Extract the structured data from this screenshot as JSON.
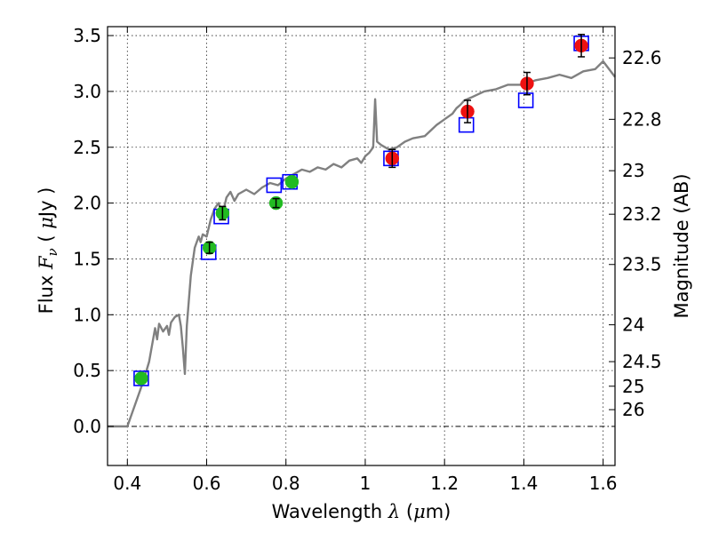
{
  "chart_data": {
    "type": "scatter",
    "xlabel_text": "Wavelength",
    "xlabel_symbol": "λ",
    "xlabel_unit_open": " (",
    "xlabel_unit_mu": "μ",
    "xlabel_unit_close": "m)",
    "ylabel_text": "Flux",
    "ylabel_symbol": "F",
    "ylabel_sub": "ν",
    "ylabel_unit_open": " ( ",
    "ylabel_unit_mu": "μ",
    "ylabel_unit_close": "Jy )",
    "y2label": "Magnitude (AB)",
    "xlim": [
      0.35,
      1.63
    ],
    "ylim": [
      -0.35,
      3.58
    ],
    "xticks": [
      0.4,
      0.6,
      0.8,
      1.0,
      1.2,
      1.4,
      1.6
    ],
    "xtick_labels": [
      "0.4",
      "0.6",
      "0.8",
      "1",
      "1.2",
      "1.4",
      "1.6"
    ],
    "yticks": [
      0.0,
      0.5,
      1.0,
      1.5,
      2.0,
      2.5,
      3.0,
      3.5
    ],
    "ytick_labels": [
      "0.0",
      "0.5",
      "1.0",
      "1.5",
      "2.0",
      "2.5",
      "3.0",
      "3.5"
    ],
    "mag_ticks": [
      {
        "label": "22.6",
        "flux": 3.3
      },
      {
        "label": "22.8",
        "flux": 2.75
      },
      {
        "label": "23",
        "flux": 2.29
      },
      {
        "label": "23.2",
        "flux": 1.9
      },
      {
        "label": "23.5",
        "flux": 1.45
      },
      {
        "label": "24",
        "flux": 0.91
      },
      {
        "label": "24.5",
        "flux": 0.58
      },
      {
        "label": "25",
        "flux": 0.36
      },
      {
        "label": "26",
        "flux": 0.15
      }
    ],
    "grid": true,
    "colors": {
      "template": "#808080",
      "model_box": "#0000ff",
      "green_point": "#22bb22",
      "red_point": "#ee1111",
      "errorbar": "#000000",
      "zero_line": "#000000"
    },
    "series": [
      {
        "style": "line",
        "points": [
          [
            0.35,
            0.0
          ],
          [
            0.4,
            0.0
          ],
          [
            0.42,
            0.2
          ],
          [
            0.44,
            0.4
          ],
          [
            0.455,
            0.58
          ],
          [
            0.47,
            0.88
          ],
          [
            0.475,
            0.78
          ],
          [
            0.48,
            0.92
          ],
          [
            0.49,
            0.85
          ],
          [
            0.5,
            0.9
          ],
          [
            0.505,
            0.82
          ],
          [
            0.51,
            0.93
          ],
          [
            0.52,
            0.98
          ],
          [
            0.53,
            1.0
          ],
          [
            0.535,
            0.9
          ],
          [
            0.54,
            0.7
          ],
          [
            0.545,
            0.47
          ],
          [
            0.55,
            0.9
          ],
          [
            0.56,
            1.35
          ],
          [
            0.57,
            1.6
          ],
          [
            0.58,
            1.7
          ],
          [
            0.585,
            1.65
          ],
          [
            0.59,
            1.72
          ],
          [
            0.6,
            1.7
          ],
          [
            0.61,
            1.85
          ],
          [
            0.62,
            1.95
          ],
          [
            0.63,
            2.0
          ],
          [
            0.64,
            1.9
          ],
          [
            0.65,
            2.05
          ],
          [
            0.66,
            2.1
          ],
          [
            0.67,
            2.02
          ],
          [
            0.68,
            2.08
          ],
          [
            0.7,
            2.12
          ],
          [
            0.72,
            2.08
          ],
          [
            0.74,
            2.14
          ],
          [
            0.76,
            2.18
          ],
          [
            0.78,
            2.16
          ],
          [
            0.8,
            2.22
          ],
          [
            0.82,
            2.26
          ],
          [
            0.84,
            2.3
          ],
          [
            0.86,
            2.28
          ],
          [
            0.88,
            2.32
          ],
          [
            0.9,
            2.3
          ],
          [
            0.92,
            2.35
          ],
          [
            0.94,
            2.32
          ],
          [
            0.96,
            2.38
          ],
          [
            0.98,
            2.4
          ],
          [
            0.99,
            2.36
          ],
          [
            1.0,
            2.42
          ],
          [
            1.01,
            2.45
          ],
          [
            1.02,
            2.5
          ],
          [
            1.025,
            2.93
          ],
          [
            1.03,
            2.55
          ],
          [
            1.04,
            2.52
          ],
          [
            1.06,
            2.48
          ],
          [
            1.08,
            2.5
          ],
          [
            1.1,
            2.55
          ],
          [
            1.12,
            2.58
          ],
          [
            1.15,
            2.6
          ],
          [
            1.18,
            2.7
          ],
          [
            1.2,
            2.75
          ],
          [
            1.22,
            2.8
          ],
          [
            1.23,
            2.85
          ],
          [
            1.24,
            2.88
          ],
          [
            1.25,
            2.92
          ],
          [
            1.27,
            2.95
          ],
          [
            1.3,
            3.0
          ],
          [
            1.33,
            3.02
          ],
          [
            1.36,
            3.06
          ],
          [
            1.4,
            3.06
          ],
          [
            1.43,
            3.1
          ],
          [
            1.46,
            3.12
          ],
          [
            1.49,
            3.15
          ],
          [
            1.52,
            3.12
          ],
          [
            1.55,
            3.18
          ],
          [
            1.58,
            3.2
          ],
          [
            1.6,
            3.27
          ],
          [
            1.63,
            3.13
          ]
        ]
      },
      {
        "style": "open-square",
        "points": [
          [
            0.435,
            0.43
          ],
          [
            0.605,
            1.56
          ],
          [
            0.637,
            1.88
          ],
          [
            0.77,
            2.16
          ],
          [
            0.81,
            2.19
          ],
          [
            1.065,
            2.4
          ],
          [
            1.255,
            2.7
          ],
          [
            1.405,
            2.92
          ],
          [
            1.545,
            3.43
          ]
        ]
      },
      {
        "style": "filled-circle-green",
        "points": [
          {
            "x": 0.435,
            "y": 0.43,
            "err": 0.0
          },
          {
            "x": 0.607,
            "y": 1.6,
            "err": 0.05
          },
          {
            "x": 0.64,
            "y": 1.91,
            "err": 0.06
          },
          {
            "x": 0.775,
            "y": 2.0,
            "err": 0.04
          },
          {
            "x": 0.815,
            "y": 2.19,
            "err": 0.0
          }
        ]
      },
      {
        "style": "filled-circle-red",
        "points": [
          {
            "x": 1.068,
            "y": 2.4,
            "err": 0.08
          },
          {
            "x": 1.258,
            "y": 2.82,
            "err": 0.1
          },
          {
            "x": 1.408,
            "y": 3.07,
            "err": 0.1
          },
          {
            "x": 1.545,
            "y": 3.41,
            "err": 0.1
          }
        ]
      }
    ]
  }
}
